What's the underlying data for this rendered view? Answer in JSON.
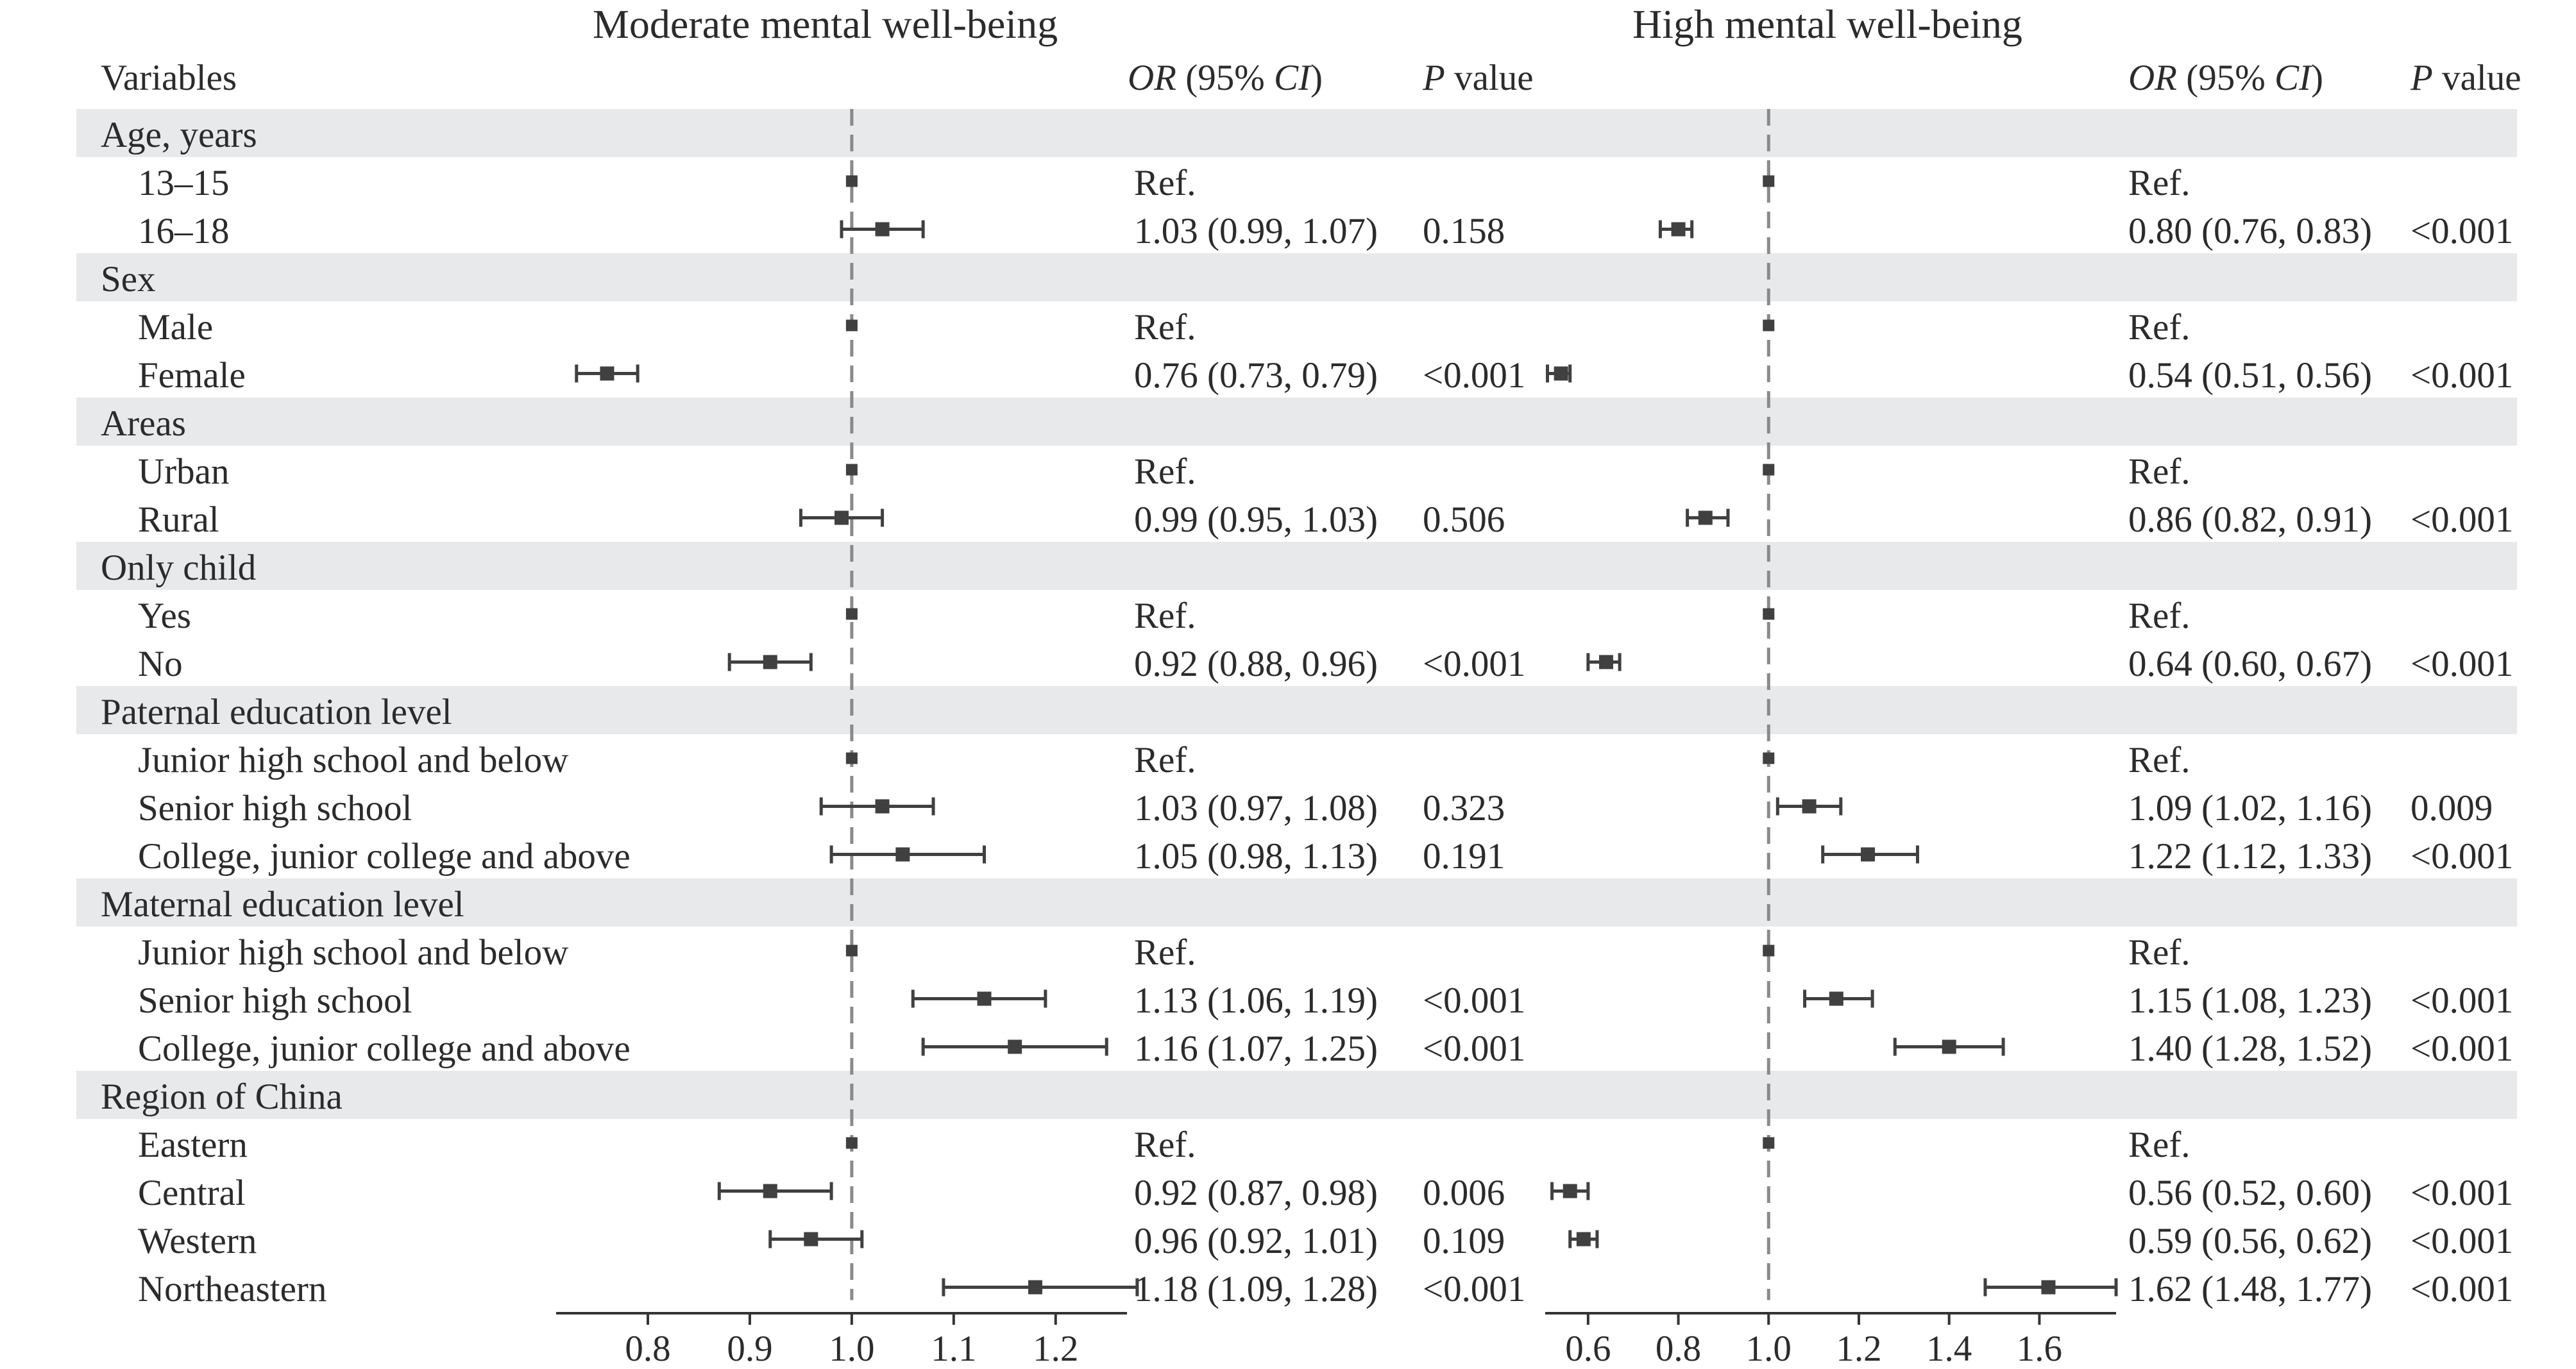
{
  "panels": [
    {
      "title": "Moderate mental well-being",
      "or_header": "OR",
      "ci_header": " (95% ",
      "ci_header2": "CI",
      "ci_header3": ")",
      "p_header_p": "P",
      "p_header_rest": " value"
    },
    {
      "title": "High mental well-being",
      "or_header": "OR",
      "ci_header": " (95% ",
      "ci_header2": "CI",
      "ci_header3": ")",
      "p_header_p": "P",
      "p_header_rest": " value"
    }
  ],
  "variables_header": "Variables",
  "rows": [
    {
      "kind": "group",
      "label": "Age, years"
    },
    {
      "kind": "item",
      "label": "13–15",
      "m": {
        "or": 1.0,
        "lo": 1.0,
        "hi": 1.0,
        "text": "Ref.",
        "p": ""
      },
      "h": {
        "or": 1.0,
        "lo": 1.0,
        "hi": 1.0,
        "text": "Ref.",
        "p": ""
      }
    },
    {
      "kind": "item",
      "label": "16–18",
      "m": {
        "or": 1.03,
        "lo": 0.99,
        "hi": 1.07,
        "text": "1.03 (0.99, 1.07)",
        "p": "0.158"
      },
      "h": {
        "or": 0.8,
        "lo": 0.76,
        "hi": 0.83,
        "text": "0.80 (0.76, 0.83)",
        "p": "<0.001"
      }
    },
    {
      "kind": "group",
      "label": "Sex"
    },
    {
      "kind": "item",
      "label": "Male",
      "m": {
        "or": 1.0,
        "lo": 1.0,
        "hi": 1.0,
        "text": "Ref.",
        "p": ""
      },
      "h": {
        "or": 1.0,
        "lo": 1.0,
        "hi": 1.0,
        "text": "Ref.",
        "p": ""
      }
    },
    {
      "kind": "item",
      "label": "Female",
      "m": {
        "or": 0.76,
        "lo": 0.73,
        "hi": 0.79,
        "text": "0.76 (0.73, 0.79)",
        "p": "<0.001"
      },
      "h": {
        "or": 0.54,
        "lo": 0.51,
        "hi": 0.56,
        "text": "0.54 (0.51, 0.56)",
        "p": "<0.001"
      }
    },
    {
      "kind": "group",
      "label": "Areas"
    },
    {
      "kind": "item",
      "label": "Urban",
      "m": {
        "or": 1.0,
        "lo": 1.0,
        "hi": 1.0,
        "text": "Ref.",
        "p": ""
      },
      "h": {
        "or": 1.0,
        "lo": 1.0,
        "hi": 1.0,
        "text": "Ref.",
        "p": ""
      }
    },
    {
      "kind": "item",
      "label": "Rural",
      "m": {
        "or": 0.99,
        "lo": 0.95,
        "hi": 1.03,
        "text": "0.99 (0.95, 1.03)",
        "p": "0.506"
      },
      "h": {
        "or": 0.86,
        "lo": 0.82,
        "hi": 0.91,
        "text": "0.86 (0.82, 0.91)",
        "p": "<0.001"
      }
    },
    {
      "kind": "group",
      "label": "Only child"
    },
    {
      "kind": "item",
      "label": "Yes",
      "m": {
        "or": 1.0,
        "lo": 1.0,
        "hi": 1.0,
        "text": "Ref.",
        "p": ""
      },
      "h": {
        "or": 1.0,
        "lo": 1.0,
        "hi": 1.0,
        "text": "Ref.",
        "p": ""
      }
    },
    {
      "kind": "item",
      "label": "No",
      "m": {
        "or": 0.92,
        "lo": 0.88,
        "hi": 0.96,
        "text": "0.92 (0.88, 0.96)",
        "p": "<0.001"
      },
      "h": {
        "or": 0.64,
        "lo": 0.6,
        "hi": 0.67,
        "text": "0.64 (0.60, 0.67)",
        "p": "<0.001"
      }
    },
    {
      "kind": "group",
      "label": "Paternal education level"
    },
    {
      "kind": "item",
      "label": "Junior high school and below",
      "m": {
        "or": 1.0,
        "lo": 1.0,
        "hi": 1.0,
        "text": "Ref.",
        "p": ""
      },
      "h": {
        "or": 1.0,
        "lo": 1.0,
        "hi": 1.0,
        "text": "Ref.",
        "p": ""
      }
    },
    {
      "kind": "item",
      "label": "Senior high school",
      "m": {
        "or": 1.03,
        "lo": 0.97,
        "hi": 1.08,
        "text": "1.03 (0.97, 1.08)",
        "p": "0.323"
      },
      "h": {
        "or": 1.09,
        "lo": 1.02,
        "hi": 1.16,
        "text": "1.09 (1.02, 1.16)",
        "p": "0.009"
      }
    },
    {
      "kind": "item",
      "label": "College, junior college and above",
      "m": {
        "or": 1.05,
        "lo": 0.98,
        "hi": 1.13,
        "text": "1.05 (0.98, 1.13)",
        "p": "0.191"
      },
      "h": {
        "or": 1.22,
        "lo": 1.12,
        "hi": 1.33,
        "text": "1.22 (1.12, 1.33)",
        "p": "<0.001"
      }
    },
    {
      "kind": "group",
      "label": "Maternal education level"
    },
    {
      "kind": "item",
      "label": "Junior high school and below",
      "m": {
        "or": 1.0,
        "lo": 1.0,
        "hi": 1.0,
        "text": "Ref.",
        "p": ""
      },
      "h": {
        "or": 1.0,
        "lo": 1.0,
        "hi": 1.0,
        "text": "Ref.",
        "p": ""
      }
    },
    {
      "kind": "item",
      "label": "Senior high school",
      "m": {
        "or": 1.13,
        "lo": 1.06,
        "hi": 1.19,
        "text": "1.13 (1.06, 1.19)",
        "p": "<0.001"
      },
      "h": {
        "or": 1.15,
        "lo": 1.08,
        "hi": 1.23,
        "text": "1.15 (1.08, 1.23)",
        "p": "<0.001"
      }
    },
    {
      "kind": "item",
      "label": "College, junior college and above",
      "m": {
        "or": 1.16,
        "lo": 1.07,
        "hi": 1.25,
        "text": "1.16 (1.07, 1.25)",
        "p": "<0.001"
      },
      "h": {
        "or": 1.4,
        "lo": 1.28,
        "hi": 1.52,
        "text": "1.40 (1.28, 1.52)",
        "p": "<0.001"
      }
    },
    {
      "kind": "group",
      "label": "Region of China"
    },
    {
      "kind": "item",
      "label": "Eastern",
      "m": {
        "or": 1.0,
        "lo": 1.0,
        "hi": 1.0,
        "text": "Ref.",
        "p": ""
      },
      "h": {
        "or": 1.0,
        "lo": 1.0,
        "hi": 1.0,
        "text": "Ref.",
        "p": ""
      }
    },
    {
      "kind": "item",
      "label": "Central",
      "m": {
        "or": 0.92,
        "lo": 0.87,
        "hi": 0.98,
        "text": "0.92 (0.87, 0.98)",
        "p": "0.006"
      },
      "h": {
        "or": 0.56,
        "lo": 0.52,
        "hi": 0.6,
        "text": "0.56 (0.52, 0.60)",
        "p": "<0.001"
      }
    },
    {
      "kind": "item",
      "label": "Western",
      "m": {
        "or": 0.96,
        "lo": 0.92,
        "hi": 1.01,
        "text": "0.96 (0.92, 1.01)",
        "p": "0.109"
      },
      "h": {
        "or": 0.59,
        "lo": 0.56,
        "hi": 0.62,
        "text": "0.59 (0.56, 0.62)",
        "p": "<0.001"
      }
    },
    {
      "kind": "item",
      "label": "Northeastern",
      "m": {
        "or": 1.18,
        "lo": 1.09,
        "hi": 1.28,
        "text": "1.18 (1.09, 1.28)",
        "p": "<0.001"
      },
      "h": {
        "or": 1.62,
        "lo": 1.48,
        "hi": 1.77,
        "text": "1.62 (1.48, 1.77)",
        "p": "<0.001"
      }
    }
  ],
  "chart_data": [
    {
      "type": "scatter",
      "title": "Moderate mental well-being",
      "reference_line": 1.0,
      "xlim": [
        0.71,
        1.27
      ],
      "xticks": [
        "0.8",
        "0.9",
        "1.0",
        "1.1",
        "1.2"
      ],
      "colors": {
        "marker": "#404040",
        "reference": "#8a8a8a",
        "band": "#e8e9eb"
      }
    },
    {
      "type": "scatter",
      "title": "High mental well-being",
      "reference_line": 1.0,
      "xlim": [
        0.505,
        1.77
      ],
      "xticks": [
        "0.6",
        "0.8",
        "1.0",
        "1.2",
        "1.4",
        "1.6"
      ],
      "colors": {
        "marker": "#404040",
        "reference": "#8a8a8a",
        "band": "#e8e9eb"
      }
    }
  ]
}
